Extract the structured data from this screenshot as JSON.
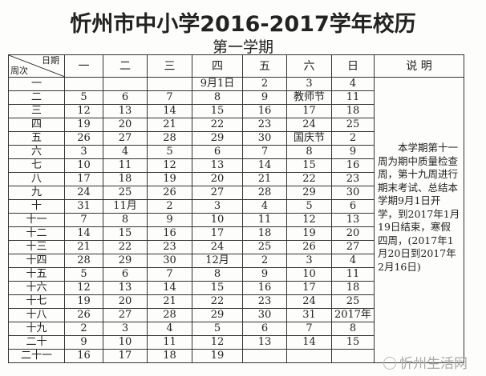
{
  "title": "忻州市中小学2016-2017学年校历",
  "subtitle": "第一学期",
  "table": {
    "corner_top": "日期",
    "corner_bottom": "周次",
    "days": [
      "一",
      "二",
      "三",
      "四",
      "五",
      "六",
      "日"
    ],
    "note_header": "说 明",
    "note": "　　本学期第十一周为期中质量检查周，第十九周进行期末考试、总结本学期9月1日开学，到2017年1月19日结束，寒假四周，(2017年1月20日到2017年2月16日)",
    "rows": [
      {
        "week": "一",
        "cells": [
          "",
          "",
          "",
          "9月1日",
          "2",
          "3",
          "4"
        ]
      },
      {
        "week": "二",
        "cells": [
          "5",
          "6",
          "7",
          "8",
          "9",
          "教师节",
          "11"
        ]
      },
      {
        "week": "三",
        "cells": [
          "12",
          "13",
          "14",
          "15",
          "16",
          "17",
          "18"
        ]
      },
      {
        "week": "四",
        "cells": [
          "19",
          "20",
          "21",
          "22",
          "23",
          "24",
          "25"
        ]
      },
      {
        "week": "五",
        "cells": [
          "26",
          "27",
          "28",
          "29",
          "30",
          "国庆节",
          "2"
        ]
      },
      {
        "week": "六",
        "cells": [
          "3",
          "4",
          "5",
          "6",
          "7",
          "8",
          "9"
        ]
      },
      {
        "week": "七",
        "cells": [
          "10",
          "11",
          "12",
          "13",
          "14",
          "15",
          "16"
        ]
      },
      {
        "week": "八",
        "cells": [
          "17",
          "18",
          "19",
          "20",
          "21",
          "22",
          "23"
        ]
      },
      {
        "week": "九",
        "cells": [
          "24",
          "25",
          "26",
          "27",
          "28",
          "29",
          "30"
        ]
      },
      {
        "week": "十",
        "cells": [
          "31",
          "11月",
          "2",
          "3",
          "4",
          "5",
          "6"
        ]
      },
      {
        "week": "十一",
        "cells": [
          "7",
          "8",
          "9",
          "10",
          "11",
          "12",
          "13"
        ]
      },
      {
        "week": "十二",
        "cells": [
          "14",
          "15",
          "16",
          "17",
          "18",
          "19",
          "20"
        ]
      },
      {
        "week": "十三",
        "cells": [
          "21",
          "22",
          "23",
          "24",
          "25",
          "26",
          "27"
        ]
      },
      {
        "week": "十四",
        "cells": [
          "28",
          "29",
          "30",
          "12月",
          "2",
          "3",
          "4"
        ]
      },
      {
        "week": "十五",
        "cells": [
          "5",
          "6",
          "7",
          "8",
          "9",
          "10",
          "11"
        ]
      },
      {
        "week": "十六",
        "cells": [
          "12",
          "13",
          "14",
          "15",
          "16",
          "17",
          "18"
        ]
      },
      {
        "week": "十七",
        "cells": [
          "19",
          "20",
          "21",
          "22",
          "23",
          "24",
          "25"
        ]
      },
      {
        "week": "十八",
        "cells": [
          "26",
          "27",
          "28",
          "29",
          "30",
          "31",
          "2017年"
        ]
      },
      {
        "week": "十九",
        "cells": [
          "2",
          "3",
          "4",
          "5",
          "6",
          "7",
          "8"
        ]
      },
      {
        "week": "二十",
        "cells": [
          "9",
          "10",
          "11",
          "12",
          "13",
          "14",
          "15"
        ]
      },
      {
        "week": "二十一",
        "cells": [
          "16",
          "17",
          "18",
          "19",
          "",
          "",
          ""
        ]
      }
    ]
  },
  "watermark": "忻州生活网"
}
